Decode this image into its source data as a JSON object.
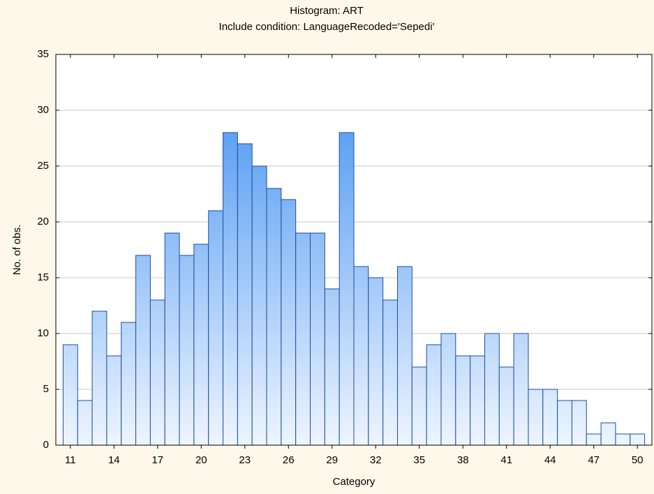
{
  "chart_data": {
    "type": "histogram",
    "title": "Histogram: ART",
    "subtitle": "Include condition: LanguageRecoded='Sepedi'",
    "xlabel": "Category",
    "ylabel": "No. of obs.",
    "bins": [
      10.5,
      11.5,
      12.5,
      13.5,
      14.5,
      15.5,
      16.5,
      17.5,
      18.5,
      19.5,
      20.5,
      21.5,
      22.5,
      23.5,
      24.5,
      25.5,
      26.5,
      27.5,
      28.5,
      29.5,
      30.5,
      31.5,
      32.5,
      33.5,
      34.5,
      35.5,
      36.5,
      37.5,
      38.5,
      39.5,
      40.5,
      41.5,
      42.5,
      43.5,
      44.5,
      45.5,
      46.5,
      47.5,
      48.5,
      49.5,
      50.5
    ],
    "values": [
      9,
      4,
      12,
      8,
      11,
      17,
      13,
      19,
      17,
      18,
      21,
      28,
      27,
      25,
      23,
      22,
      19,
      19,
      14,
      28,
      16,
      15,
      13,
      16,
      7,
      9,
      10,
      8,
      8,
      10,
      7,
      10,
      5,
      5,
      4,
      4,
      1,
      2,
      1,
      1
    ],
    "color": "#3a8cf0",
    "edge_color": "#1d4f9e",
    "xlim": [
      10,
      51
    ],
    "xticks": [
      11,
      14,
      17,
      20,
      23,
      26,
      29,
      32,
      35,
      38,
      41,
      44,
      47,
      50
    ],
    "ylim": [
      0,
      35
    ],
    "yticks": [
      0,
      5,
      10,
      15,
      20,
      25,
      30,
      35
    ],
    "grid": true
  }
}
